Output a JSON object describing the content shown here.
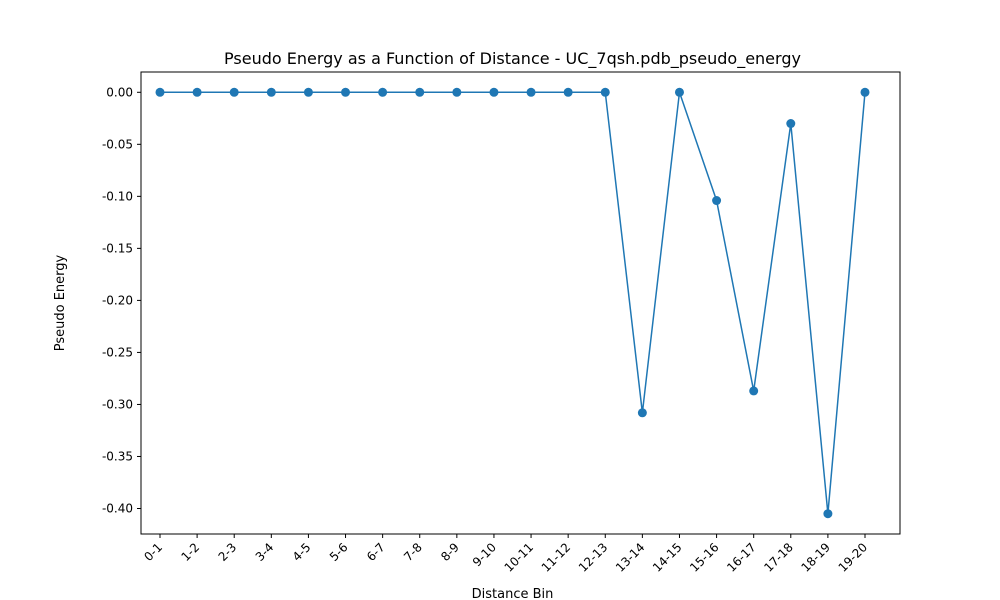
{
  "chart_data": {
    "type": "line",
    "title": "Pseudo Energy as a Function of Distance - UC_7qsh.pdb_pseudo_energy",
    "xlabel": "Distance Bin",
    "ylabel": "Pseudo Energy",
    "categories": [
      "0-1",
      "1-2",
      "2-3",
      "3-4",
      "4-5",
      "5-6",
      "6-7",
      "7-8",
      "8-9",
      "9-10",
      "10-11",
      "11-12",
      "12-13",
      "13-14",
      "14-15",
      "15-16",
      "16-17",
      "17-18",
      "18-19",
      "19-20"
    ],
    "series": [
      {
        "values": [
          0.0,
          0.0,
          0.0,
          0.0,
          0.0,
          0.0,
          0.0,
          0.0,
          0.0,
          0.0,
          0.0,
          0.0,
          0.0,
          -0.308,
          0.0,
          -0.104,
          -0.287,
          -0.03,
          -0.405,
          0.0
        ],
        "color": "#1f77b4",
        "marker": "circle"
      }
    ],
    "ylim": [
      -0.4245,
      0.0195
    ],
    "yticks": [
      "0.00",
      "-0.05",
      "-0.10",
      "-0.15",
      "-0.20",
      "-0.25",
      "-0.30",
      "-0.35",
      "-0.40"
    ],
    "grid": false,
    "legend": "none"
  }
}
